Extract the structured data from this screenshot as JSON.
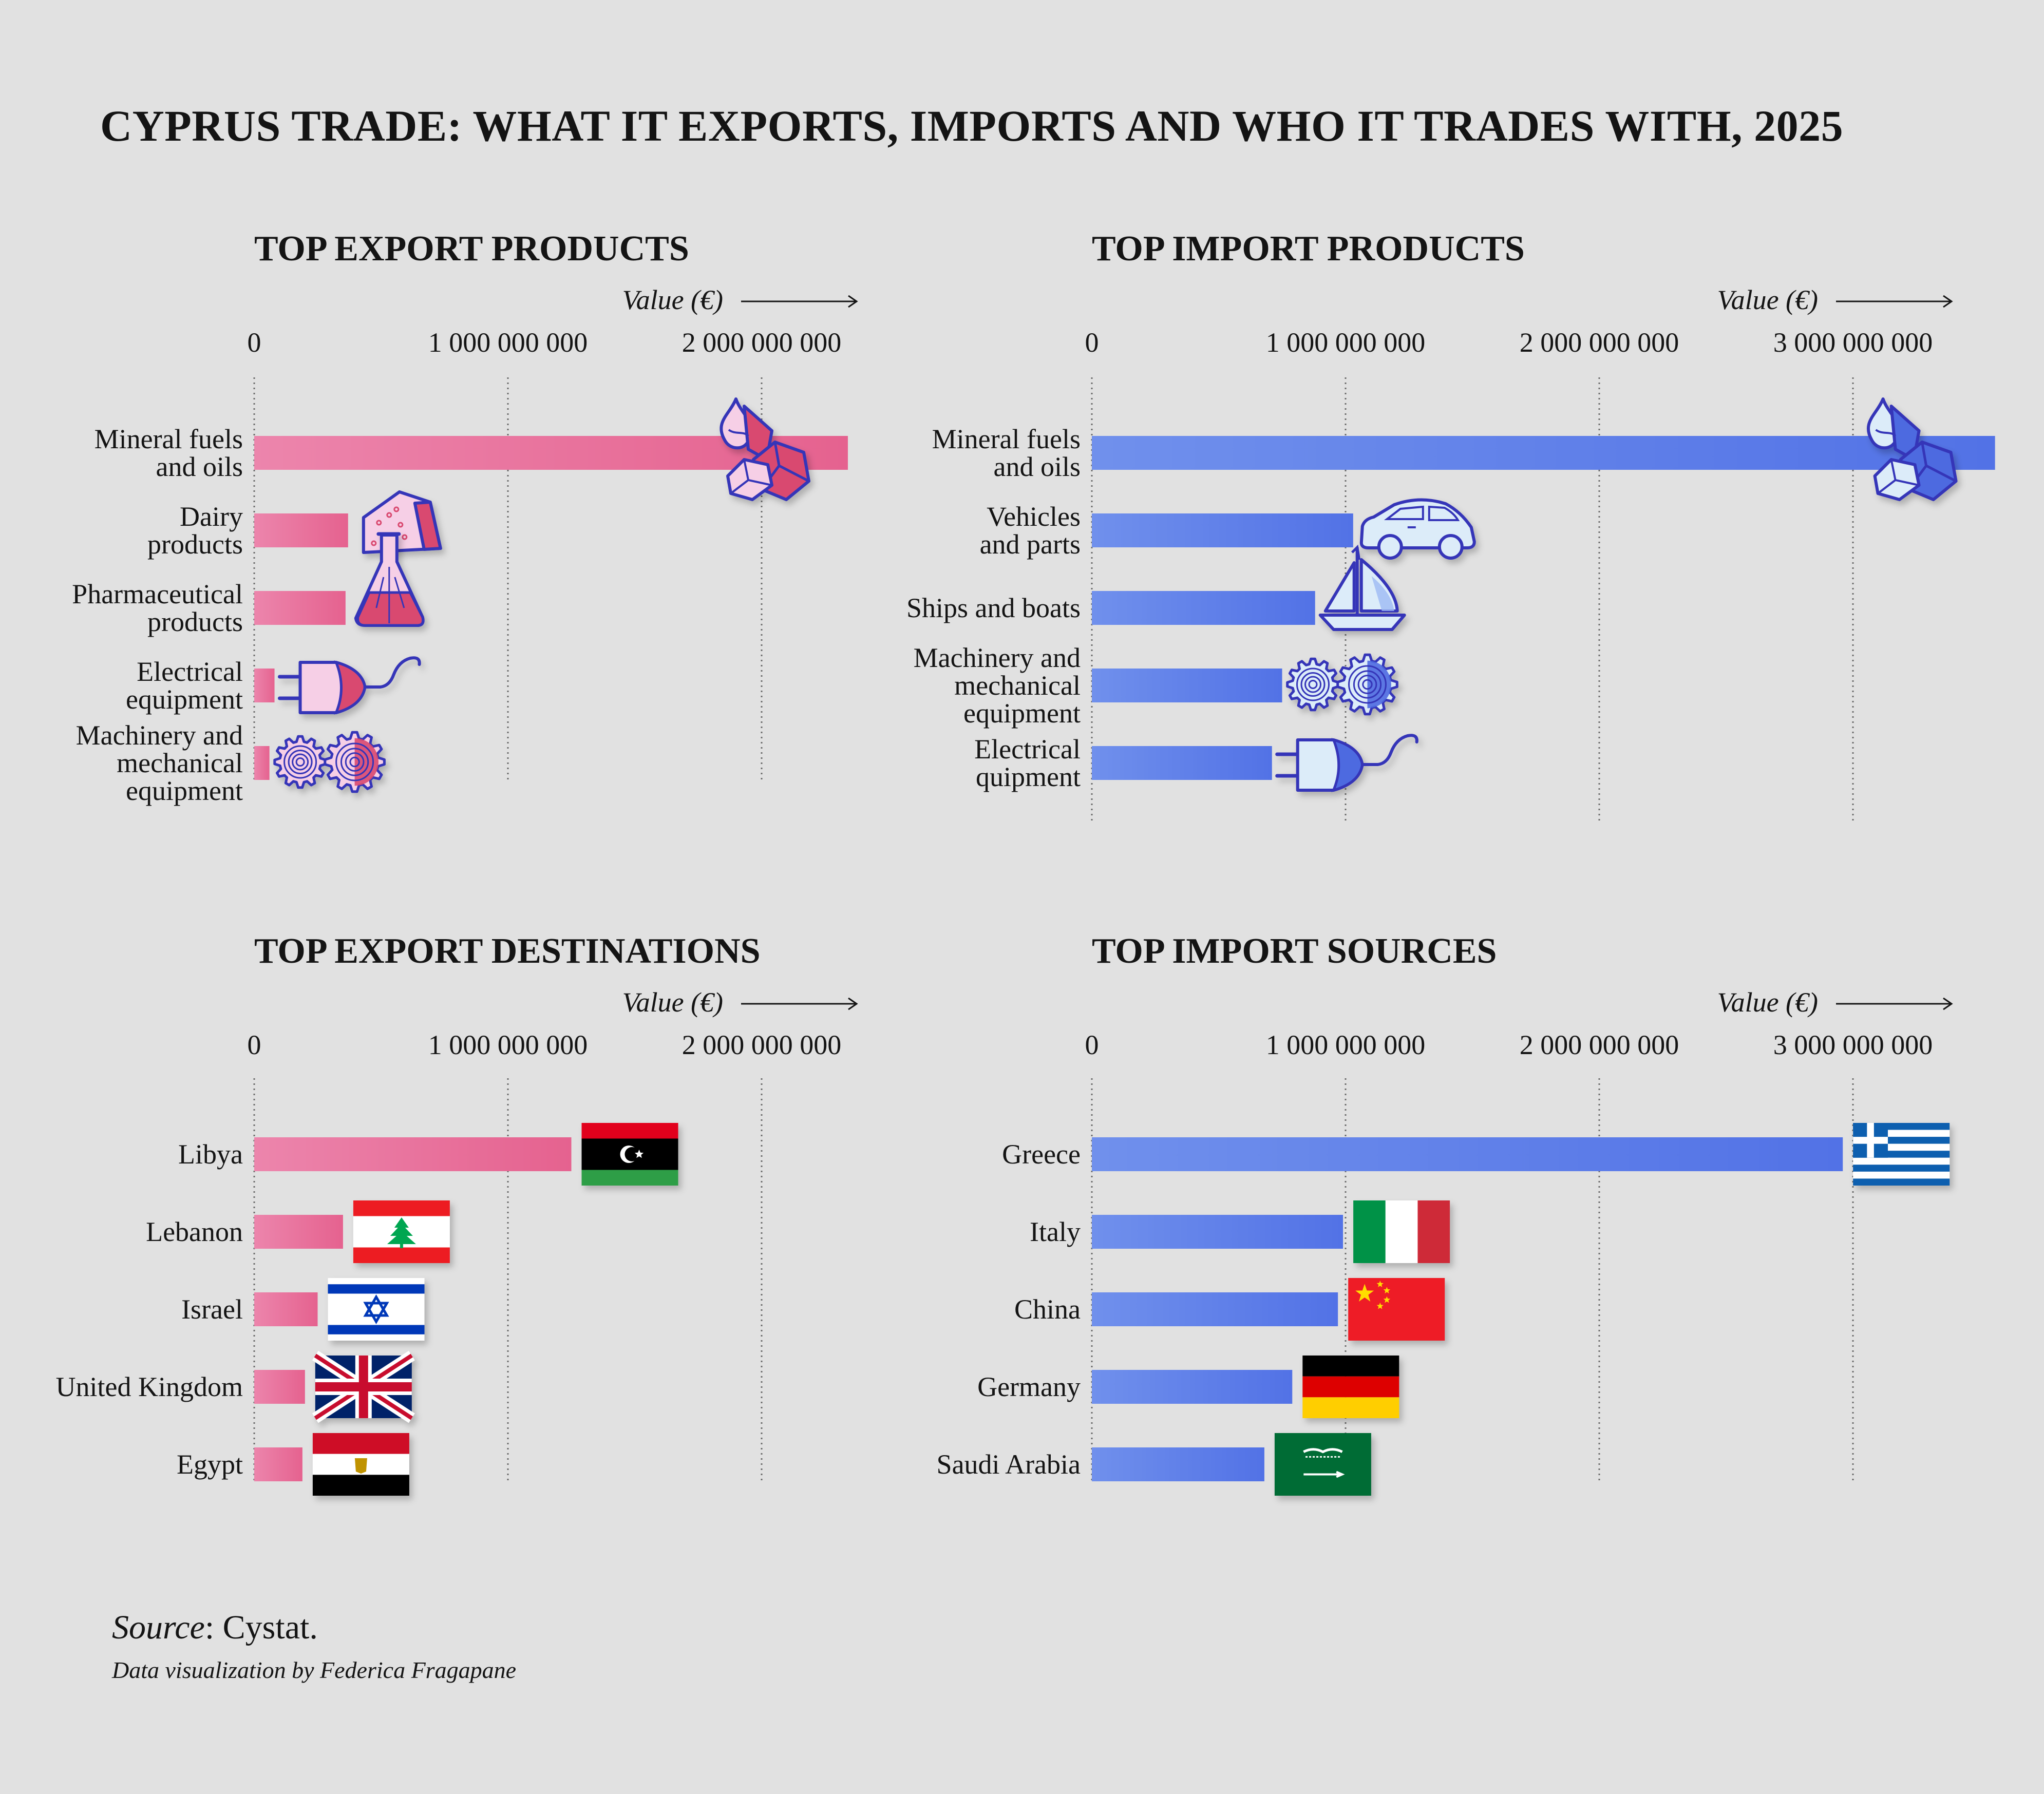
{
  "title": "CYPRUS TRADE: WHAT IT EXPORTS, IMPORTS AND WHO IT TRADES WITH, 2025",
  "source_label": "Source",
  "source_value": ": Cystat.",
  "credit": "Data visualization by Federica Fragapane",
  "colors": {
    "export": "#e8709c",
    "import": "#5b7be8",
    "background": "#e1e1e1",
    "icon_outline": "#3434b8"
  },
  "chart_data": [
    {
      "type": "bar",
      "title": "TOP EXPORT PRODUCTS",
      "axis_label": "Value (€)",
      "xlim": [
        0,
        2400000000
      ],
      "ticks": [
        0,
        1000000000,
        2000000000
      ],
      "tick_labels": [
        "0",
        "1 000 000 000",
        "2 000 000 000"
      ],
      "grid": true,
      "orientation": "horizontal",
      "categories": [
        "Mineral fuels\nand oils",
        "Dairy\nproducts",
        "Pharmaceutical\nproducts",
        "Electrical\nequipment",
        "Machinery and\nmechanical\nequipment"
      ],
      "values": [
        2340000000,
        370000000,
        360000000,
        80000000,
        60000000
      ],
      "icons": [
        "mineral-fuels-icon",
        "cheese-icon",
        "flask-icon",
        "plug-icon",
        "gears-icon"
      ]
    },
    {
      "type": "bar",
      "title": "TOP IMPORT PRODUCTS",
      "axis_label": "Value (€)",
      "xlim": [
        0,
        3500000000
      ],
      "ticks": [
        0,
        1000000000,
        2000000000,
        3000000000
      ],
      "tick_labels": [
        "0",
        "1 000 000 000",
        "2 000 000 000",
        "3 000 000 000"
      ],
      "grid": true,
      "orientation": "horizontal",
      "categories": [
        "Mineral fuels\nand oils",
        "Vehicles\nand parts",
        "Ships and boats",
        "Machinery and\nmechanical\nequipment",
        "Electrical\nquipment"
      ],
      "values": [
        3560000000,
        1030000000,
        880000000,
        750000000,
        710000000
      ],
      "icons": [
        "mineral-fuels-icon",
        "car-icon",
        "sailboat-icon",
        "gears-icon",
        "plug-icon"
      ]
    },
    {
      "type": "bar",
      "title": "TOP EXPORT DESTINATIONS",
      "axis_label": "Value (€)",
      "xlim": [
        0,
        2400000000
      ],
      "ticks": [
        0,
        1000000000,
        2000000000
      ],
      "tick_labels": [
        "0",
        "1 000 000 000",
        "2 000 000 000"
      ],
      "grid": true,
      "orientation": "horizontal",
      "categories": [
        "Libya",
        "Lebanon",
        "Israel",
        "United Kingdom",
        "Egypt"
      ],
      "values": [
        1250000000,
        350000000,
        250000000,
        200000000,
        190000000
      ],
      "icons": [
        "libya-flag-icon",
        "lebanon-flag-icon",
        "israel-flag-icon",
        "uk-flag-icon",
        "egypt-flag-icon"
      ]
    },
    {
      "type": "bar",
      "title": "TOP IMPORT SOURCES",
      "axis_label": "Value (€)",
      "xlim": [
        0,
        3500000000
      ],
      "ticks": [
        0,
        1000000000,
        2000000000,
        3000000000
      ],
      "tick_labels": [
        "0",
        "1 000 000 000",
        "2 000 000 000",
        "3 000 000 000"
      ],
      "grid": true,
      "orientation": "horizontal",
      "categories": [
        "Greece",
        "Italy",
        "China",
        "Germany",
        "Saudi Arabia"
      ],
      "values": [
        2960000000,
        990000000,
        970000000,
        790000000,
        680000000
      ],
      "icons": [
        "greece-flag-icon",
        "italy-flag-icon",
        "china-flag-icon",
        "germany-flag-icon",
        "saudi-arabia-flag-icon"
      ]
    }
  ]
}
